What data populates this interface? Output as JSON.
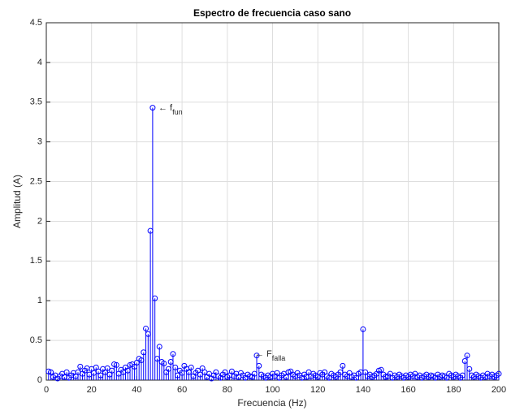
{
  "chart_data": {
    "type": "stem",
    "title": "Espectro de frecuencia caso sano",
    "x_label": "Frecuencia (Hz)",
    "y_label": "Amplitud (A)",
    "color": "#0000ff",
    "grid": true,
    "xlim": [
      0,
      200
    ],
    "xticks": [
      0,
      20,
      40,
      60,
      80,
      100,
      120,
      140,
      160,
      180,
      200
    ],
    "ylim": [
      0,
      4.5
    ],
    "yticks": [
      0,
      0.5,
      1,
      1.5,
      2,
      2.5,
      3,
      3.5,
      4,
      4.5
    ],
    "annotations": [
      {
        "text": "← f",
        "sub": "fun"
      },
      {
        "text": "← F",
        "sub": "falla"
      }
    ],
    "x": [
      1,
      2,
      3,
      4,
      5,
      6,
      7,
      8,
      9,
      10,
      11,
      12,
      13,
      14,
      15,
      16,
      17,
      18,
      19,
      20,
      21,
      22,
      23,
      24,
      25,
      26,
      27,
      28,
      29,
      30,
      31,
      32,
      33,
      34,
      35,
      36,
      37,
      38,
      39,
      40,
      41,
      42,
      43,
      44,
      45,
      46,
      47,
      48,
      49,
      50,
      51,
      52,
      53,
      54,
      55,
      56,
      57,
      58,
      59,
      60,
      61,
      62,
      63,
      64,
      65,
      66,
      67,
      68,
      69,
      70,
      71,
      72,
      73,
      74,
      75,
      76,
      77,
      78,
      79,
      80,
      81,
      82,
      83,
      84,
      85,
      86,
      87,
      88,
      89,
      90,
      91,
      92,
      93,
      94,
      95,
      96,
      97,
      98,
      99,
      100,
      101,
      102,
      103,
      104,
      105,
      106,
      107,
      108,
      109,
      110,
      111,
      112,
      113,
      114,
      115,
      116,
      117,
      118,
      119,
      120,
      121,
      122,
      123,
      124,
      125,
      126,
      127,
      128,
      129,
      130,
      131,
      132,
      133,
      134,
      135,
      136,
      137,
      138,
      139,
      140,
      141,
      142,
      143,
      144,
      145,
      146,
      147,
      148,
      149,
      150,
      151,
      152,
      153,
      154,
      155,
      156,
      157,
      158,
      159,
      160,
      161,
      162,
      163,
      164,
      165,
      166,
      167,
      168,
      169,
      170,
      171,
      172,
      173,
      174,
      175,
      176,
      177,
      178,
      179,
      180,
      181,
      182,
      183,
      184,
      185,
      186,
      187,
      188,
      189,
      190,
      191,
      192,
      193,
      194,
      195,
      196,
      197,
      198,
      199,
      200
    ],
    "values": [
      0.11,
      0.1,
      0.04,
      0.06,
      0.02,
      0.05,
      0.08,
      0.04,
      0.1,
      0.03,
      0.06,
      0.09,
      0.05,
      0.1,
      0.17,
      0.08,
      0.12,
      0.15,
      0.07,
      0.14,
      0.09,
      0.16,
      0.11,
      0.06,
      0.14,
      0.1,
      0.15,
      0.07,
      0.12,
      0.2,
      0.19,
      0.08,
      0.13,
      0.1,
      0.16,
      0.12,
      0.19,
      0.2,
      0.17,
      0.22,
      0.27,
      0.25,
      0.35,
      0.65,
      0.58,
      1.88,
      3.43,
      1.03,
      0.27,
      0.42,
      0.23,
      0.21,
      0.1,
      0.14,
      0.23,
      0.33,
      0.16,
      0.06,
      0.12,
      0.09,
      0.18,
      0.14,
      0.1,
      0.16,
      0.05,
      0.09,
      0.12,
      0.07,
      0.15,
      0.1,
      0.04,
      0.08,
      0.02,
      0.06,
      0.1,
      0.05,
      0.03,
      0.07,
      0.1,
      0.04,
      0.06,
      0.11,
      0.05,
      0.08,
      0.04,
      0.09,
      0.06,
      0.03,
      0.07,
      0.05,
      0.04,
      0.08,
      0.31,
      0.18,
      0.07,
      0.05,
      0.03,
      0.06,
      0.04,
      0.08,
      0.05,
      0.09,
      0.03,
      0.06,
      0.08,
      0.04,
      0.1,
      0.11,
      0.07,
      0.05,
      0.09,
      0.06,
      0.03,
      0.07,
      0.04,
      0.1,
      0.05,
      0.08,
      0.06,
      0.04,
      0.09,
      0.07,
      0.1,
      0.05,
      0.03,
      0.08,
      0.06,
      0.04,
      0.07,
      0.1,
      0.18,
      0.07,
      0.05,
      0.09,
      0.04,
      0.06,
      0.03,
      0.08,
      0.1,
      0.64,
      0.1,
      0.05,
      0.07,
      0.04,
      0.06,
      0.08,
      0.12,
      0.13,
      0.07,
      0.04,
      0.05,
      0.08,
      0.03,
      0.06,
      0.04,
      0.07,
      0.05,
      0.03,
      0.06,
      0.04,
      0.07,
      0.05,
      0.08,
      0.04,
      0.06,
      0.03,
      0.05,
      0.07,
      0.04,
      0.06,
      0.05,
      0.03,
      0.07,
      0.04,
      0.06,
      0.05,
      0.03,
      0.08,
      0.06,
      0.04,
      0.07,
      0.05,
      0.03,
      0.06,
      0.24,
      0.31,
      0.14,
      0.06,
      0.04,
      0.07,
      0.05,
      0.03,
      0.06,
      0.04,
      0.08,
      0.05,
      0.07,
      0.04,
      0.06,
      0.08
    ]
  }
}
